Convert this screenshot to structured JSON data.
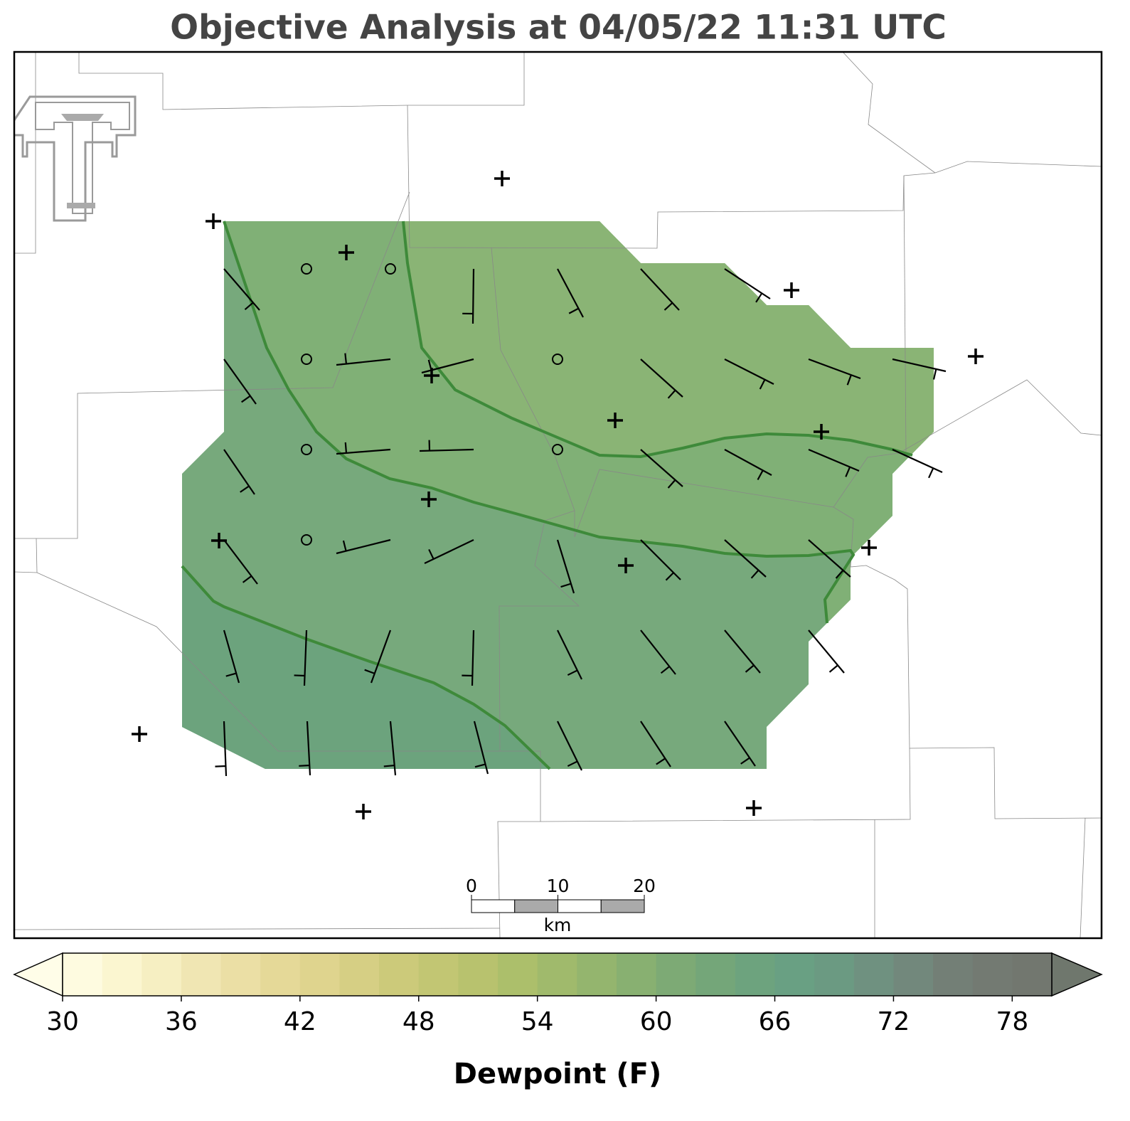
{
  "title": "Objective Analysis at 04/05/22 11:31 UTC",
  "scale_bar": {
    "ticks": [
      0,
      10,
      20
    ],
    "unit": "km"
  },
  "colorbar": {
    "label": "Dewpoint (F)",
    "lim": [
      30,
      80
    ],
    "ticks": [
      30,
      36,
      42,
      48,
      54,
      60,
      66,
      72,
      78
    ],
    "colors": [
      "#fefbe0",
      "#fbf6d0",
      "#f6efc2",
      "#f0e6b3",
      "#ebdfa5",
      "#e5d998",
      "#dfd48e",
      "#d6cf84",
      "#ccca7a",
      "#c2c673",
      "#b8c26e",
      "#acbf6b",
      "#a0ba6c",
      "#94b56e",
      "#88b071",
      "#7daa75",
      "#74a679",
      "#6da37e",
      "#69a083",
      "#6b9a82",
      "#6f9180",
      "#72887c",
      "#737f76",
      "#737a72",
      "#72776f"
    ],
    "extend_colors": [
      "#fffde8",
      "#6f776d"
    ]
  }
}
